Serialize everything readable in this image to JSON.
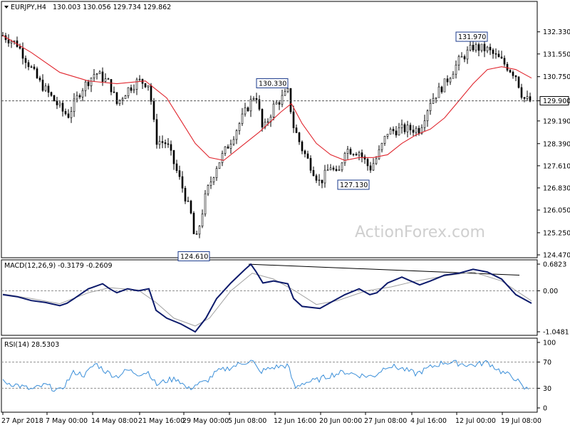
{
  "header": {
    "symbol": "EURJPY,H4",
    "ohlc": "130.003 130.056 129.734 129.862"
  },
  "watermark": "ActionForex.com",
  "colors": {
    "candle": "#000000",
    "ma": "#e0262e",
    "macd": "#0c1a6b",
    "signal": "#a0a0a0",
    "rsi": "#3b8fd9",
    "level": "#909090",
    "box_border": "#1a3a8c"
  },
  "chart_data": [
    {
      "type": "candlestick",
      "title": "EURJPY,H4",
      "y_ticks": [
        "132.330",
        "131.550",
        "130.750",
        "129.900",
        "129.190",
        "128.390",
        "127.610",
        "126.830",
        "126.050",
        "125.250",
        "124.470"
      ],
      "ylim": [
        124.47,
        133.0
      ],
      "x_ticks": [
        "27 Apr 2018",
        "7 May 00:00",
        "14 May 08:00",
        "21 May 16:00",
        "29 May 00:00",
        "5 Jun 08:00",
        "12 Jun 16:00",
        "20 Jun 00:00",
        "27 Jun 08:00",
        "4 Jul 16:00",
        "12 Jul 00:00",
        "19 Jul 08:00"
      ],
      "current_price": "129.900",
      "annotations": [
        "124.610",
        "130.330",
        "127.130",
        "131.970"
      ],
      "close_path": {
        "x": [
          0,
          20,
          50,
          85,
          92,
          110,
          130,
          150,
          160,
          175,
          190,
          205,
          215,
          230,
          250,
          265,
          270,
          285,
          300,
          320,
          340,
          355,
          365,
          380,
          400,
          408,
          420,
          445,
          460,
          470,
          480,
          500,
          515,
          525,
          540,
          560,
          585,
          600,
          620,
          640,
          660,
          680,
          700,
          720,
          730,
          742
        ],
        "y": [
          132.2,
          131.9,
          130.6,
          129.5,
          129.4,
          130.3,
          130.9,
          130.5,
          129.8,
          130.3,
          130.6,
          130.5,
          128.5,
          128.4,
          127.0,
          125.8,
          124.8,
          126.6,
          127.6,
          128.5,
          129.5,
          130.2,
          128.8,
          129.7,
          130.2,
          129.0,
          128.2,
          127.0,
          127.6,
          127.2,
          128.2,
          128.1,
          127.5,
          127.9,
          128.8,
          128.9,
          128.9,
          129.9,
          130.5,
          131.3,
          131.8,
          131.7,
          131.3,
          130.8,
          130.0,
          129.86
        ]
      },
      "ma_path": {
        "x": [
          0,
          40,
          80,
          120,
          160,
          200,
          230,
          255,
          270,
          290,
          310,
          330,
          360,
          390,
          405,
          420,
          440,
          460,
          480,
          500,
          520,
          540,
          560,
          580,
          600,
          620,
          640,
          660,
          680,
          700,
          720,
          742
        ],
        "y": [
          132.2,
          131.6,
          130.9,
          130.6,
          130.5,
          130.6,
          130.0,
          129.0,
          128.4,
          127.9,
          127.8,
          128.2,
          128.8,
          129.5,
          129.8,
          129.1,
          128.4,
          128.0,
          127.8,
          127.9,
          127.9,
          128.0,
          128.4,
          128.7,
          128.9,
          129.3,
          129.9,
          130.5,
          131.0,
          131.1,
          131.0,
          130.7
        ]
      }
    },
    {
      "type": "line",
      "title": "MACD(12,26,9) -0.3179 -0.2609",
      "y_ticks": [
        "0.6823",
        "0.00",
        "-1.0481"
      ],
      "ylim": [
        -1.0481,
        0.6823
      ],
      "macd_path": {
        "x": [
          0,
          20,
          40,
          60,
          80,
          90,
          100,
          120,
          140,
          150,
          160,
          175,
          190,
          205,
          215,
          230,
          250,
          260,
          270,
          285,
          300,
          320,
          340,
          348,
          355,
          365,
          380,
          400,
          408,
          420,
          445,
          460,
          480,
          500,
          515,
          525,
          540,
          560,
          585,
          600,
          620,
          640,
          660,
          680,
          700,
          720,
          742
        ],
        "y": [
          -0.1,
          -0.15,
          -0.25,
          -0.3,
          -0.38,
          -0.32,
          -0.2,
          0.05,
          0.18,
          0.05,
          -0.05,
          0.05,
          0.0,
          0.05,
          -0.5,
          -0.7,
          -0.85,
          -0.95,
          -1.05,
          -0.7,
          -0.2,
          0.2,
          0.55,
          0.68,
          0.5,
          0.2,
          0.25,
          0.18,
          -0.2,
          -0.4,
          -0.45,
          -0.3,
          -0.1,
          0.05,
          -0.1,
          -0.05,
          0.2,
          0.35,
          0.15,
          0.25,
          0.4,
          0.45,
          0.55,
          0.48,
          0.3,
          -0.1,
          -0.32
        ]
      },
      "signal_path": {
        "x": [
          0,
          40,
          80,
          120,
          150,
          190,
          215,
          240,
          270,
          290,
          320,
          350,
          380,
          410,
          440,
          470,
          510,
          545,
          580,
          620,
          660,
          700,
          742
        ],
        "y": [
          -0.08,
          -0.2,
          -0.33,
          -0.05,
          0.08,
          0.02,
          -0.3,
          -0.7,
          -0.9,
          -0.7,
          0.0,
          0.45,
          0.3,
          0.0,
          -0.35,
          -0.25,
          0.0,
          0.1,
          0.25,
          0.38,
          0.48,
          0.25,
          -0.26
        ]
      },
      "trendline": {
        "x": [
          345,
          725
        ],
        "y": [
          0.68,
          0.4
        ]
      }
    },
    {
      "type": "line",
      "title": "RSI(14) 28.5303",
      "y_ticks": [
        "100",
        "70",
        "30",
        "0"
      ],
      "ylim": [
        0,
        100
      ],
      "levels": [
        70,
        30
      ],
      "rsi_path": {
        "x": [
          0,
          20,
          40,
          60,
          80,
          90,
          100,
          115,
          130,
          145,
          160,
          175,
          190,
          205,
          215,
          230,
          245,
          260,
          270,
          285,
          300,
          320,
          340,
          350,
          360,
          380,
          400,
          410,
          420,
          440,
          460,
          480,
          500,
          520,
          540,
          560,
          580,
          600,
          620,
          640,
          660,
          680,
          700,
          720,
          730,
          740
        ],
        "y": [
          40,
          35,
          28,
          35,
          25,
          40,
          55,
          50,
          68,
          55,
          48,
          58,
          52,
          55,
          35,
          42,
          45,
          28,
          35,
          40,
          55,
          62,
          70,
          72,
          55,
          62,
          65,
          30,
          38,
          42,
          50,
          55,
          50,
          48,
          65,
          60,
          52,
          62,
          70,
          68,
          65,
          70,
          55,
          45,
          30,
          28.5
        ]
      }
    }
  ]
}
